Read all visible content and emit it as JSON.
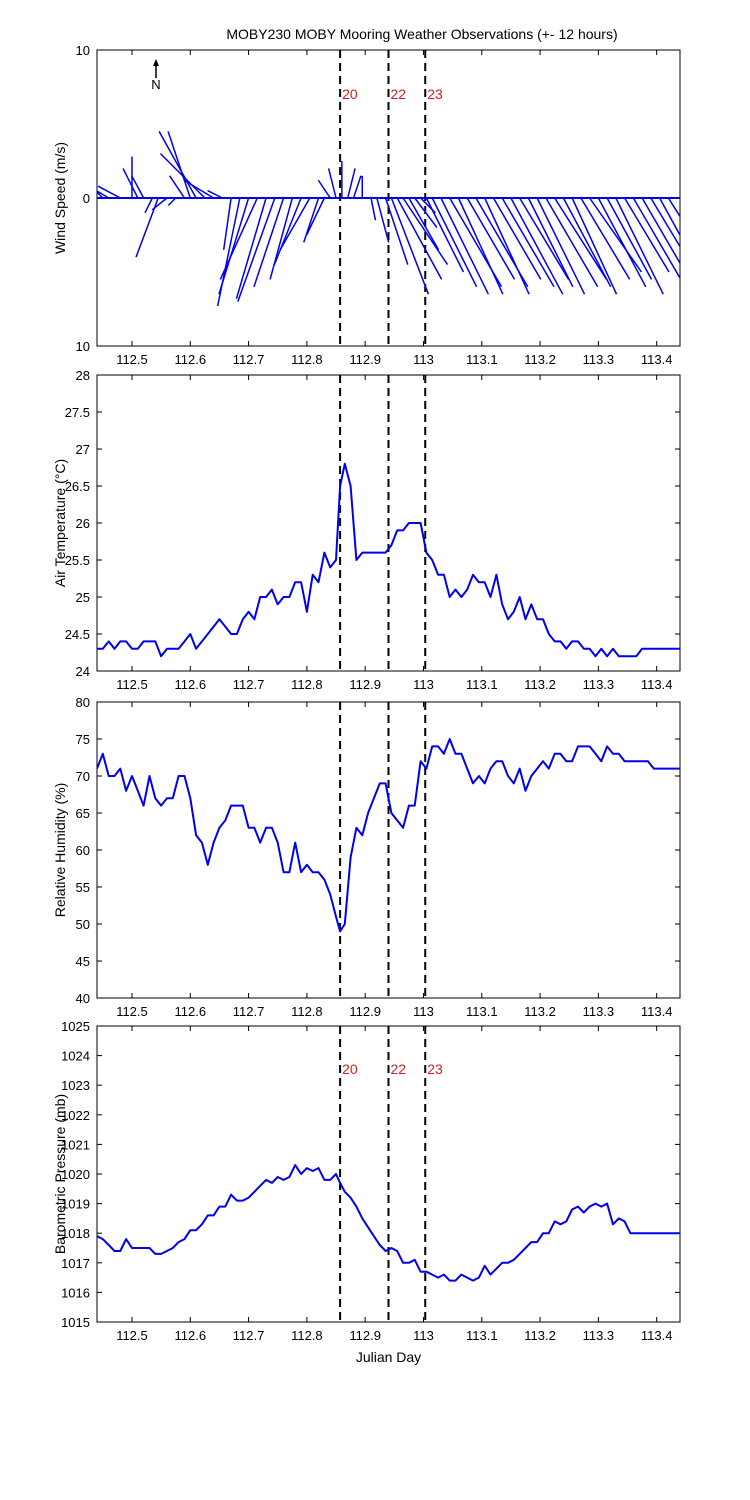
{
  "figure_title": "MOBY230 MOBY Mooring Weather Observations (+- 12 hours)",
  "colors": {
    "series": "#0000ee",
    "marker_label": "#cc2222",
    "axis": "#000000"
  },
  "chart_data": [
    {
      "type": "line",
      "subtype": "wind-vectors",
      "title": "",
      "xlabel": "",
      "ylabel": "Wind Speed (m/s)",
      "xlim": [
        112.44,
        113.44
      ],
      "ylim": [
        -10,
        10
      ],
      "y_ticks": [
        "10",
        "0",
        "10"
      ],
      "x_ticks": [
        "112.5",
        "112.6",
        "112.7",
        "112.8",
        "112.9",
        "113",
        "113.1",
        "113.2",
        "113.3",
        "113.4"
      ],
      "north_label": "N",
      "grid": false,
      "markers": [
        {
          "x": 112.857,
          "label": "20"
        },
        {
          "x": 112.94,
          "label": "22"
        },
        {
          "x": 113.003,
          "label": "23"
        }
      ],
      "series": [
        {
          "x": [
            112.45,
            112.46,
            112.48,
            112.5,
            112.51,
            112.52,
            112.535,
            112.545,
            112.56,
            112.575,
            112.59,
            112.6,
            112.61,
            112.625,
            112.64,
            112.655,
            112.67,
            112.685,
            112.7,
            112.715,
            112.73,
            112.745,
            112.76,
            112.775,
            112.79,
            112.805,
            112.82,
            112.83,
            112.84,
            112.85,
            112.86,
            112.87,
            112.88,
            112.895,
            112.91,
            112.92,
            112.935,
            112.945,
            112.955,
            112.965,
            112.975,
            112.985,
            112.995,
            113.005,
            113.015,
            113.03,
            113.045,
            113.06,
            113.075,
            113.09,
            113.105,
            113.12,
            113.135,
            113.15,
            113.165,
            113.18,
            113.195,
            113.21,
            113.225,
            113.24,
            113.255,
            113.27,
            113.285,
            113.3,
            113.315,
            113.33,
            113.345,
            113.36,
            113.375,
            113.39,
            113.405,
            113.42
          ],
          "u": [
            -2.0,
            -2.5,
            -1.5,
            0.0,
            -1.0,
            -0.8,
            -0.5,
            -1.5,
            -1.0,
            -0.5,
            -1.0,
            -1.5,
            -2.5,
            -3.0,
            -2.0,
            -1.0,
            -0.5,
            -1.5,
            -2.0,
            -2.5,
            -2.0,
            -2.5,
            -2.0,
            -1.5,
            -1.8,
            -2.0,
            -1.0,
            -1.2,
            -0.8,
            -0.5,
            0.0,
            0.5,
            0.5,
            0.0,
            0.3,
            0.8,
            1.5,
            2.5,
            3.0,
            3.0,
            2.0,
            1.5,
            1.0,
            2.5,
            3.0,
            3.2,
            3.5,
            3.0,
            3.2,
            3.5,
            3.0,
            3.2,
            3.5,
            3.5,
            3.3,
            3.0,
            3.2,
            3.5,
            3.5,
            3.2,
            3.0,
            3.3,
            3.5,
            3.2,
            3.0,
            3.2,
            3.0,
            3.5,
            3.2,
            3.0,
            3.3,
            3.5
          ],
          "v": [
            2.0,
            1.5,
            0.8,
            2.8,
            2.0,
            1.5,
            -1.0,
            -4.0,
            -0.8,
            -0.5,
            1.5,
            4.5,
            4.5,
            3.0,
            1.2,
            0.5,
            -3.5,
            -7.3,
            -6.5,
            -5.5,
            -6.8,
            -7.0,
            -6.0,
            -5.5,
            -4.5,
            -3.5,
            -3.0,
            -2.5,
            1.2,
            2.0,
            2.5,
            2.0,
            1.5,
            1.5,
            -1.5,
            -3.0,
            -4.5,
            -6.5,
            -5.5,
            -4.5,
            -3.5,
            -2.0,
            -1.0,
            -5.0,
            -6.0,
            -6.5,
            -6.0,
            -6.5,
            -5.5,
            -6.0,
            -6.5,
            -5.5,
            -6.0,
            -6.5,
            -5.5,
            -6.0,
            -6.5,
            -6.0,
            -5.5,
            -6.0,
            -6.5,
            -5.5,
            -5.0,
            -6.0,
            -5.5,
            -6.5,
            -5.0,
            -6.0,
            -5.5,
            -5.0,
            -6.0,
            -5.5
          ]
        }
      ]
    },
    {
      "type": "line",
      "title": "",
      "xlabel": "",
      "ylabel": "Air Temperature (°C)",
      "xlim": [
        112.44,
        113.44
      ],
      "ylim": [
        24,
        28
      ],
      "y_ticks": [
        24,
        24.5,
        25,
        25.5,
        26,
        26.5,
        27,
        27.5,
        28
      ],
      "x_ticks": [
        "112.5",
        "112.6",
        "112.7",
        "112.8",
        "112.9",
        "113",
        "113.1",
        "113.2",
        "113.3",
        "113.4"
      ],
      "grid": false,
      "markers": [
        {
          "x": 112.857,
          "label": ""
        },
        {
          "x": 112.94,
          "label": ""
        },
        {
          "x": 113.003,
          "label": ""
        }
      ],
      "series": [
        {
          "x": [
            112.44,
            112.45,
            112.46,
            112.47,
            112.48,
            112.49,
            112.5,
            112.51,
            112.52,
            112.53,
            112.54,
            112.55,
            112.56,
            112.57,
            112.58,
            112.59,
            112.6,
            112.61,
            112.62,
            112.63,
            112.64,
            112.65,
            112.66,
            112.67,
            112.68,
            112.69,
            112.7,
            112.71,
            112.72,
            112.73,
            112.74,
            112.75,
            112.76,
            112.77,
            112.78,
            112.79,
            112.8,
            112.81,
            112.82,
            112.83,
            112.84,
            112.85,
            112.857,
            112.865,
            112.875,
            112.885,
            112.895,
            112.905,
            112.915,
            112.925,
            112.935,
            112.945,
            112.955,
            112.965,
            112.975,
            112.985,
            112.995,
            113.005,
            113.015,
            113.025,
            113.035,
            113.045,
            113.055,
            113.065,
            113.075,
            113.085,
            113.095,
            113.105,
            113.115,
            113.125,
            113.135,
            113.145,
            113.155,
            113.165,
            113.175,
            113.185,
            113.195,
            113.205,
            113.215,
            113.225,
            113.235,
            113.245,
            113.255,
            113.265,
            113.275,
            113.285,
            113.295,
            113.305,
            113.315,
            113.325,
            113.335,
            113.345,
            113.355,
            113.365,
            113.375,
            113.385,
            113.395,
            113.405,
            113.415,
            113.425,
            113.44
          ],
          "y": [
            24.3,
            24.3,
            24.4,
            24.3,
            24.4,
            24.4,
            24.3,
            24.3,
            24.4,
            24.4,
            24.4,
            24.2,
            24.3,
            24.3,
            24.3,
            24.4,
            24.5,
            24.3,
            24.4,
            24.5,
            24.6,
            24.7,
            24.6,
            24.5,
            24.5,
            24.7,
            24.8,
            24.7,
            25.0,
            25.0,
            25.1,
            24.9,
            25.0,
            25.0,
            25.2,
            25.2,
            24.8,
            25.3,
            25.2,
            25.6,
            25.4,
            25.5,
            26.5,
            26.8,
            26.5,
            25.5,
            25.6,
            25.6,
            25.6,
            25.6,
            25.6,
            25.7,
            25.9,
            25.9,
            26.0,
            26.0,
            26.0,
            25.6,
            25.5,
            25.3,
            25.3,
            25.0,
            25.1,
            25.0,
            25.1,
            25.3,
            25.2,
            25.2,
            25.0,
            25.3,
            24.9,
            24.7,
            24.8,
            25.0,
            24.7,
            24.9,
            24.7,
            24.7,
            24.5,
            24.4,
            24.4,
            24.3,
            24.4,
            24.4,
            24.3,
            24.3,
            24.2,
            24.3,
            24.2,
            24.3,
            24.2,
            24.2,
            24.2,
            24.2,
            24.3,
            24.3,
            24.3,
            24.3,
            24.3,
            24.3,
            24.3
          ]
        }
      ]
    },
    {
      "type": "line",
      "title": "",
      "xlabel": "",
      "ylabel": "Relative Humidity (%)",
      "xlim": [
        112.44,
        113.44
      ],
      "ylim": [
        40,
        80
      ],
      "y_ticks": [
        40,
        45,
        50,
        55,
        60,
        65,
        70,
        75,
        80
      ],
      "x_ticks": [
        "112.5",
        "112.6",
        "112.7",
        "112.8",
        "112.9",
        "113",
        "113.1",
        "113.2",
        "113.3",
        "113.4"
      ],
      "grid": false,
      "markers": [
        {
          "x": 112.857,
          "label": ""
        },
        {
          "x": 112.94,
          "label": ""
        },
        {
          "x": 113.003,
          "label": ""
        }
      ],
      "series": [
        {
          "x": [
            112.44,
            112.45,
            112.46,
            112.47,
            112.48,
            112.49,
            112.5,
            112.51,
            112.52,
            112.53,
            112.54,
            112.55,
            112.56,
            112.57,
            112.58,
            112.59,
            112.6,
            112.61,
            112.62,
            112.63,
            112.64,
            112.65,
            112.66,
            112.67,
            112.68,
            112.69,
            112.7,
            112.71,
            112.72,
            112.73,
            112.74,
            112.75,
            112.76,
            112.77,
            112.78,
            112.79,
            112.8,
            112.81,
            112.82,
            112.83,
            112.84,
            112.85,
            112.857,
            112.865,
            112.875,
            112.885,
            112.895,
            112.905,
            112.915,
            112.925,
            112.935,
            112.945,
            112.955,
            112.965,
            112.975,
            112.985,
            112.995,
            113.005,
            113.015,
            113.025,
            113.035,
            113.045,
            113.055,
            113.065,
            113.075,
            113.085,
            113.095,
            113.105,
            113.115,
            113.125,
            113.135,
            113.145,
            113.155,
            113.165,
            113.175,
            113.185,
            113.195,
            113.205,
            113.215,
            113.225,
            113.235,
            113.245,
            113.255,
            113.265,
            113.275,
            113.285,
            113.295,
            113.305,
            113.315,
            113.325,
            113.335,
            113.345,
            113.355,
            113.365,
            113.375,
            113.385,
            113.395,
            113.405,
            113.415,
            113.425,
            113.44
          ],
          "y": [
            71,
            73,
            70,
            70,
            71,
            68,
            70,
            68,
            66,
            70,
            67,
            66,
            67,
            67,
            70,
            70,
            67,
            62,
            61,
            58,
            61,
            63,
            64,
            66,
            66,
            66,
            63,
            63,
            61,
            63,
            63,
            61,
            57,
            57,
            61,
            57,
            58,
            57,
            57,
            56,
            54,
            51,
            49,
            50,
            59,
            63,
            62,
            65,
            67,
            69,
            69,
            65,
            64,
            63,
            66,
            66,
            72,
            71,
            74,
            74,
            73,
            75,
            73,
            73,
            71,
            69,
            70,
            69,
            71,
            72,
            72,
            70,
            69,
            71,
            68,
            70,
            71,
            72,
            71,
            73,
            73,
            72,
            72,
            74,
            74,
            74,
            73,
            72,
            74,
            73,
            73,
            72,
            72,
            72,
            72,
            72,
            71,
            71,
            71,
            71,
            71
          ]
        }
      ]
    },
    {
      "type": "line",
      "title": "",
      "xlabel": "Julian Day",
      "ylabel": "Barometric Pressure (mb)",
      "xlim": [
        112.44,
        113.44
      ],
      "ylim": [
        1015,
        1025
      ],
      "y_ticks": [
        1015,
        1016,
        1017,
        1018,
        1019,
        1020,
        1021,
        1022,
        1023,
        1024,
        1025
      ],
      "x_ticks": [
        "112.5",
        "112.6",
        "112.7",
        "112.8",
        "112.9",
        "113",
        "113.1",
        "113.2",
        "113.3",
        "113.4"
      ],
      "grid": false,
      "markers": [
        {
          "x": 112.857,
          "label": "20"
        },
        {
          "x": 112.94,
          "label": "22"
        },
        {
          "x": 113.003,
          "label": "23"
        }
      ],
      "series": [
        {
          "x": [
            112.44,
            112.45,
            112.46,
            112.47,
            112.48,
            112.49,
            112.5,
            112.51,
            112.52,
            112.53,
            112.54,
            112.55,
            112.56,
            112.57,
            112.58,
            112.59,
            112.6,
            112.61,
            112.62,
            112.63,
            112.64,
            112.65,
            112.66,
            112.67,
            112.68,
            112.69,
            112.7,
            112.71,
            112.72,
            112.73,
            112.74,
            112.75,
            112.76,
            112.77,
            112.78,
            112.79,
            112.8,
            112.81,
            112.82,
            112.83,
            112.84,
            112.85,
            112.857,
            112.865,
            112.875,
            112.885,
            112.895,
            112.905,
            112.915,
            112.925,
            112.935,
            112.945,
            112.955,
            112.965,
            112.975,
            112.985,
            112.995,
            113.005,
            113.015,
            113.025,
            113.035,
            113.045,
            113.055,
            113.065,
            113.075,
            113.085,
            113.095,
            113.105,
            113.115,
            113.125,
            113.135,
            113.145,
            113.155,
            113.165,
            113.175,
            113.185,
            113.195,
            113.205,
            113.215,
            113.225,
            113.235,
            113.245,
            113.255,
            113.265,
            113.275,
            113.285,
            113.295,
            113.305,
            113.315,
            113.325,
            113.335,
            113.345,
            113.355,
            113.365,
            113.375,
            113.385,
            113.395,
            113.405,
            113.415,
            113.425,
            113.44
          ],
          "y": [
            1017.9,
            1017.8,
            1017.6,
            1017.4,
            1017.4,
            1017.8,
            1017.5,
            1017.5,
            1017.5,
            1017.5,
            1017.3,
            1017.3,
            1017.4,
            1017.5,
            1017.7,
            1017.8,
            1018.1,
            1018.1,
            1018.3,
            1018.6,
            1018.6,
            1018.9,
            1018.9,
            1019.3,
            1019.1,
            1019.1,
            1019.2,
            1019.4,
            1019.6,
            1019.8,
            1019.7,
            1019.9,
            1019.8,
            1019.9,
            1020.3,
            1020.0,
            1020.2,
            1020.1,
            1020.2,
            1019.8,
            1019.8,
            1020.0,
            1019.7,
            1019.4,
            1019.2,
            1018.9,
            1018.5,
            1018.2,
            1017.9,
            1017.6,
            1017.4,
            1017.5,
            1017.4,
            1017.0,
            1017.0,
            1017.1,
            1016.7,
            1016.7,
            1016.6,
            1016.5,
            1016.6,
            1016.4,
            1016.4,
            1016.6,
            1016.5,
            1016.4,
            1016.5,
            1016.9,
            1016.6,
            1016.8,
            1017.0,
            1017.0,
            1017.1,
            1017.3,
            1017.5,
            1017.7,
            1017.7,
            1018.0,
            1018.0,
            1018.4,
            1018.3,
            1018.4,
            1018.8,
            1018.9,
            1018.7,
            1018.9,
            1019.0,
            1018.9,
            1019.0,
            1018.3,
            1018.5,
            1018.4,
            1018.0,
            1018.0,
            1018.0,
            1018.0,
            1018.0,
            1018.0,
            1018.0,
            1018.0,
            1018.0
          ]
        }
      ]
    }
  ]
}
